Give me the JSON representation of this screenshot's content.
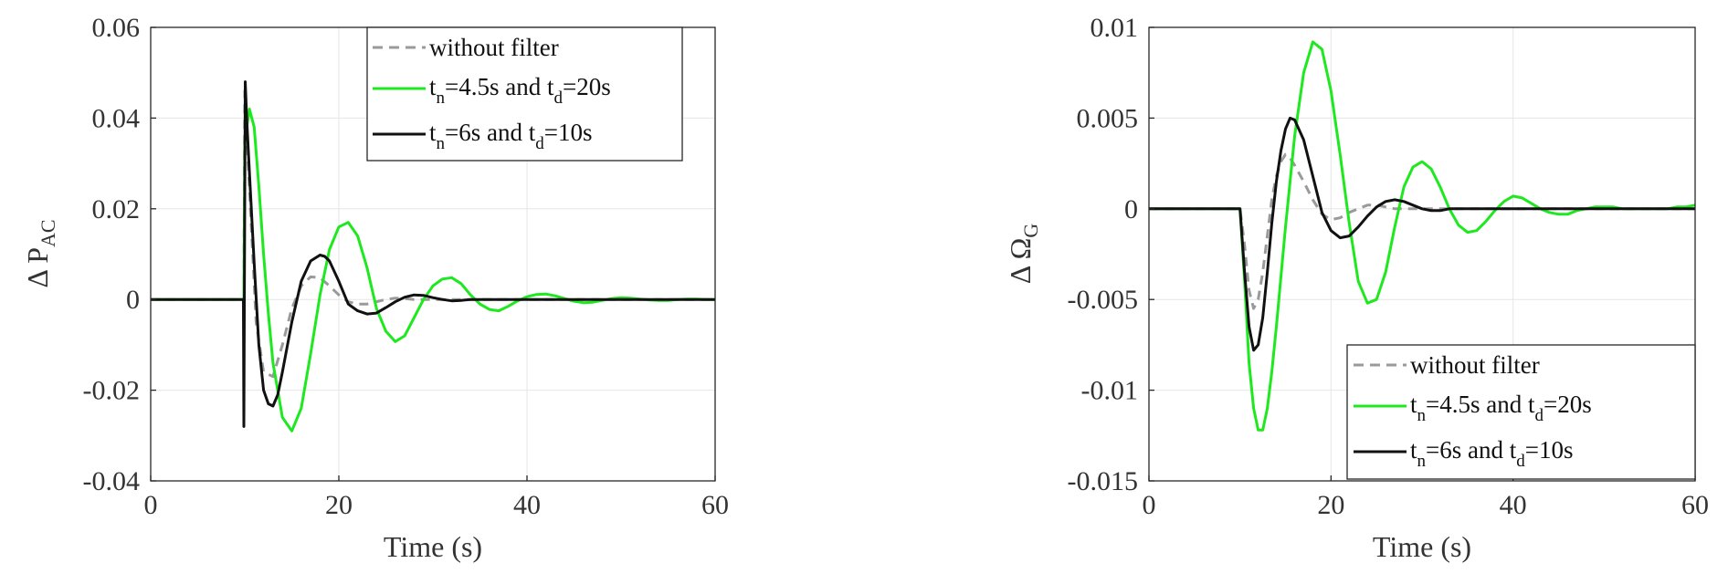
{
  "chart_data": [
    {
      "type": "line",
      "xlabel": "Time (s)",
      "ylabel_symbol": "Δ P",
      "ylabel_sub": "AC",
      "xlim": [
        0,
        60
      ],
      "ylim": [
        -0.04,
        0.06
      ],
      "xticks": [
        0,
        20,
        40,
        60
      ],
      "yticks": [
        -0.04,
        -0.02,
        0,
        0.02,
        0.04,
        0.06
      ],
      "xtick_labels": [
        "0",
        "20",
        "40",
        "60"
      ],
      "ytick_labels": [
        "-0.04",
        "-0.02",
        "0",
        "0.02",
        "0.04",
        "0.06"
      ],
      "grid": true,
      "legend_position": "top-right",
      "series": [
        {
          "name": "without filter",
          "color": "#9a9a9a",
          "dash": true,
          "x": [
            0,
            9.9,
            10,
            10.6,
            11.2,
            12,
            13,
            14,
            15,
            16,
            17,
            18,
            19,
            20,
            21,
            22,
            23,
            24,
            25,
            26,
            27,
            28,
            29,
            30,
            35,
            40,
            60
          ],
          "y": [
            0,
            0,
            0.046,
            0.02,
            -0.005,
            -0.016,
            -0.017,
            -0.01,
            -0.002,
            0.003,
            0.005,
            0.0048,
            0.003,
            0.001,
            -0.0005,
            -0.001,
            -0.001,
            -0.0005,
            0,
            0.0003,
            0.0002,
            0,
            0,
            0,
            0,
            0,
            0
          ]
        },
        {
          "name": "t_n=4.5s and t_d=20s",
          "label_parts": [
            [
              "t",
              "n",
              "=4.5s and t",
              "d",
              "=20s"
            ]
          ],
          "color": "#1ee81e",
          "dash": false,
          "x": [
            0,
            9.9,
            10,
            10.5,
            11,
            11.5,
            12,
            12.5,
            13,
            14,
            15,
            16,
            17,
            18,
            19,
            20,
            21,
            22,
            23,
            24,
            25,
            26,
            27,
            28,
            29,
            30,
            31,
            32,
            33,
            34,
            35,
            36,
            37,
            38,
            39,
            40,
            41,
            42,
            43,
            44,
            45,
            46,
            47,
            48,
            49,
            50,
            51,
            52,
            53,
            54,
            55,
            56,
            57,
            58,
            59,
            60
          ],
          "y": [
            0,
            0,
            0.035,
            0.042,
            0.038,
            0.025,
            0.01,
            -0.003,
            -0.014,
            -0.026,
            -0.029,
            -0.024,
            -0.012,
            0.001,
            0.011,
            0.016,
            0.017,
            0.014,
            0.007,
            -0.002,
            -0.007,
            -0.0093,
            -0.008,
            -0.004,
            0,
            0.003,
            0.0045,
            0.0048,
            0.0035,
            0.001,
            -0.001,
            -0.0022,
            -0.0025,
            -0.0015,
            -0.0003,
            0.0006,
            0.0011,
            0.0012,
            0.0008,
            0.0002,
            -0.0004,
            -0.0007,
            -0.0006,
            -0.0002,
            0.0002,
            0.0004,
            0.0003,
            0.0001,
            -0.0001,
            -0.0002,
            -0.0002,
            0,
            0.0001,
            0.0001,
            0,
            0
          ]
        },
        {
          "name": "t_n=6s and t_d=10s",
          "label_parts": [
            [
              "t",
              "n",
              "=6s and t",
              "d",
              "=10s"
            ]
          ],
          "color": "#111111",
          "dash": false,
          "x": [
            0,
            9.85,
            9.9,
            10.05,
            10.2,
            10.5,
            11,
            11.5,
            12,
            12.5,
            13,
            13.5,
            14,
            15,
            16,
            17,
            18,
            18.5,
            19,
            20,
            21,
            22,
            23,
            24,
            25,
            26,
            27,
            28,
            29,
            30,
            31,
            32,
            33,
            34,
            35,
            40,
            45,
            50,
            60
          ],
          "y": [
            0,
            0,
            -0.028,
            0.048,
            0.04,
            0.028,
            0.008,
            -0.01,
            -0.02,
            -0.023,
            -0.0235,
            -0.021,
            -0.016,
            -0.005,
            0.004,
            0.0085,
            0.0098,
            0.0095,
            0.0085,
            0.004,
            -0.001,
            -0.0025,
            -0.0032,
            -0.003,
            -0.0018,
            -0.0005,
            0.0005,
            0.001,
            0.0009,
            0.0004,
            0,
            -0.0003,
            -0.0002,
            0,
            0,
            0,
            0,
            0,
            0
          ]
        }
      ],
      "legend": {
        "entries": [
          {
            "text": "without filter"
          },
          {
            "t": "t",
            "s1": "n",
            "mid": "=4.5s and t",
            "s2": "d",
            "end": "=20s"
          },
          {
            "t": "t",
            "s1": "n",
            "mid": "=6s and t",
            "s2": "d",
            "end": "=10s"
          }
        ]
      }
    },
    {
      "type": "line",
      "xlabel": "Time (s)",
      "ylabel_symbol": "Δ Ω",
      "ylabel_sub": "G",
      "xlim": [
        0,
        60
      ],
      "ylim": [
        -0.015,
        0.01
      ],
      "xticks": [
        0,
        20,
        40,
        60
      ],
      "yticks": [
        -0.015,
        -0.01,
        -0.005,
        0,
        0.005,
        0.01
      ],
      "xtick_labels": [
        "0",
        "20",
        "40",
        "60"
      ],
      "ytick_labels": [
        "-0.015",
        "-0.01",
        "-0.005",
        "0",
        "0.005",
        "0.01"
      ],
      "grid": true,
      "legend_position": "bottom-right",
      "series": [
        {
          "name": "without filter",
          "color": "#9a9a9a",
          "dash": true,
          "x": [
            0,
            10,
            10.5,
            11,
            11.5,
            12,
            12.5,
            13,
            13.5,
            14,
            14.5,
            15,
            15.5,
            16,
            17,
            18,
            19,
            20,
            21,
            22,
            23,
            24,
            25,
            26,
            27,
            28,
            30,
            35,
            40,
            60
          ],
          "y": [
            0,
            0,
            -0.002,
            -0.0045,
            -0.0055,
            -0.005,
            -0.0035,
            -0.0015,
            0.0005,
            0.0018,
            0.0026,
            0.003,
            0.0028,
            0.0024,
            0.0015,
            0.0005,
            -0.0003,
            -0.0006,
            -0.0005,
            -0.0002,
            0,
            0.0002,
            0.0002,
            0.0001,
            0,
            0,
            0,
            0,
            0,
            0
          ]
        },
        {
          "name": "t_n=4.5s and t_d=20s",
          "color": "#1ee81e",
          "dash": false,
          "x": [
            0,
            10,
            10.5,
            11,
            11.5,
            12,
            12.5,
            13,
            13.5,
            14,
            15,
            16,
            17,
            18,
            19,
            20,
            21,
            22,
            23,
            24,
            25,
            26,
            27,
            28,
            29,
            30,
            31,
            32,
            33,
            34,
            35,
            36,
            37,
            38,
            39,
            40,
            41,
            42,
            43,
            44,
            45,
            46,
            47,
            48,
            49,
            50,
            51,
            52,
            53,
            54,
            55,
            56,
            57,
            58,
            59,
            60
          ],
          "y": [
            0,
            0,
            -0.004,
            -0.0085,
            -0.011,
            -0.0122,
            -0.0122,
            -0.011,
            -0.009,
            -0.0065,
            -0.001,
            0.004,
            0.0075,
            0.0092,
            0.0088,
            0.0065,
            0.003,
            -0.0008,
            -0.004,
            -0.0052,
            -0.005,
            -0.0035,
            -0.001,
            0.0012,
            0.0023,
            0.0026,
            0.0022,
            0.0012,
            0,
            -0.0009,
            -0.0013,
            -0.0012,
            -0.0007,
            -0.0001,
            0.0004,
            0.0007,
            0.0006,
            0.0003,
            0,
            -0.0002,
            -0.0003,
            -0.0003,
            -0.0001,
            0,
            0.0001,
            0.0001,
            0.0001,
            0,
            0,
            0,
            0,
            0,
            0,
            0.0001,
            0.0001,
            0.0002
          ]
        },
        {
          "name": "t_n=6s and t_d=10s",
          "color": "#111111",
          "dash": false,
          "x": [
            0,
            10,
            10.5,
            11,
            11.5,
            12,
            12.5,
            13,
            13.5,
            14,
            14.5,
            15,
            15.5,
            16,
            17,
            18,
            19,
            20,
            21,
            22,
            23,
            24,
            25,
            26,
            27,
            28,
            29,
            30,
            31,
            32,
            33,
            35,
            40,
            45,
            60
          ],
          "y": [
            0,
            0,
            -0.0035,
            -0.0065,
            -0.0078,
            -0.0075,
            -0.006,
            -0.0035,
            -0.0008,
            0.0015,
            0.0032,
            0.0044,
            0.005,
            0.0049,
            0.0038,
            0.0018,
            -0.0002,
            -0.0012,
            -0.0016,
            -0.0015,
            -0.001,
            -0.0004,
            0.0001,
            0.0004,
            0.0005,
            0.0004,
            0.0002,
            0,
            -0.0001,
            -0.0001,
            0,
            0,
            0,
            0,
            0
          ]
        }
      ],
      "legend": {
        "entries": [
          {
            "text": "without filter"
          },
          {
            "t": "t",
            "s1": "n",
            "mid": "=4.5s and t",
            "s2": "d",
            "end": "=20s"
          },
          {
            "t": "t",
            "s1": "n",
            "mid": "=6s and t",
            "s2": "d",
            "end": "=10s"
          }
        ]
      }
    }
  ]
}
